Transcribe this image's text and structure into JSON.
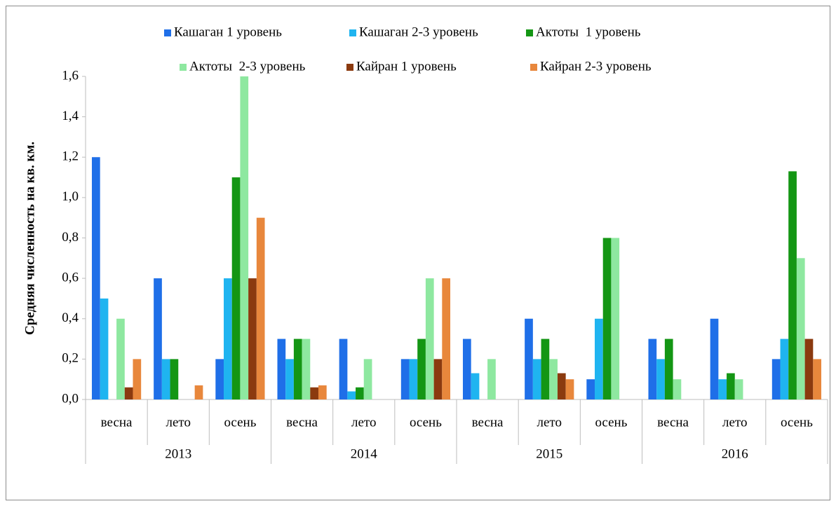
{
  "chart_data": {
    "type": "bar",
    "y_label": "Средняя численность на кв. км.",
    "categories": [
      "весна",
      "лето",
      "осень",
      "весна",
      "лето",
      "осень",
      "весна",
      "лето",
      "осень",
      "весна",
      "лето",
      "осень"
    ],
    "category_groups": [
      "2013",
      "2014",
      "2015",
      "2016"
    ],
    "series": [
      {
        "name": "Кашаган 1 уровень",
        "color": "#1f6fe8",
        "values": [
          1.2,
          0.6,
          0.2,
          0.3,
          0.3,
          0.2,
          0.3,
          0.4,
          0.1,
          0.3,
          0.4,
          0.2
        ]
      },
      {
        "name": "Кашаган 2-3 уровень",
        "color": "#1fb4f0",
        "values": [
          0.5,
          0.2,
          0.6,
          0.2,
          0.04,
          0.2,
          0.13,
          0.2,
          0.4,
          0.2,
          0.1,
          0.3
        ]
      },
      {
        "name": "Актоты  1 уровень",
        "color": "#149614",
        "values": [
          0,
          0.2,
          1.1,
          0.3,
          0.06,
          0.3,
          0,
          0.3,
          0.8,
          0.3,
          0.13,
          1.13
        ]
      },
      {
        "name": "Актоты  2-3 уровень",
        "color": "#8ee8a0",
        "values": [
          0.4,
          0,
          1.6,
          0.3,
          0.2,
          0.6,
          0.2,
          0.2,
          0.8,
          0.1,
          0.1,
          0.7
        ]
      },
      {
        "name": "Кайран 1 уровень",
        "color": "#8b3a0f",
        "values": [
          0.06,
          0,
          0.6,
          0.06,
          0,
          0.2,
          0,
          0.13,
          0,
          0,
          0,
          0.3
        ]
      },
      {
        "name": "Кайран 2-3 уровень",
        "color": "#e8873c",
        "values": [
          0.2,
          0.07,
          0.9,
          0.07,
          0,
          0.6,
          0,
          0.1,
          0,
          0,
          0,
          0.2
        ]
      }
    ],
    "ylim": [
      0,
      1.6
    ],
    "yticks": [
      {
        "value": 0,
        "label": "0,0"
      },
      {
        "value": 0.2,
        "label": "0,2"
      },
      {
        "value": 0.4,
        "label": "0,4"
      },
      {
        "value": 0.6,
        "label": "0,6"
      },
      {
        "value": 0.8,
        "label": "0,8"
      },
      {
        "value": 1.0,
        "label": "1,0"
      },
      {
        "value": 1.2,
        "label": "1,2"
      },
      {
        "value": 1.4,
        "label": "1,4"
      },
      {
        "value": 1.6,
        "label": "1,6"
      }
    ],
    "legend": "top"
  }
}
